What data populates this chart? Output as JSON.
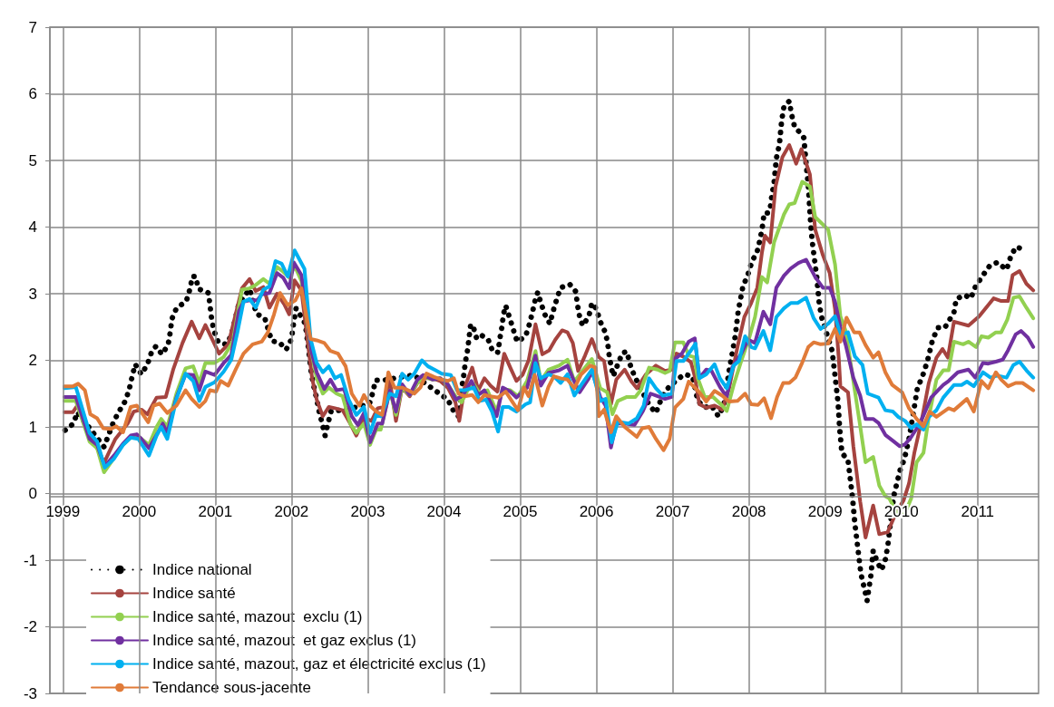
{
  "chart_data": {
    "type": "line",
    "xlim": [
      1998.83,
      2011.8
    ],
    "xticks": [
      1999,
      2000,
      2001,
      2002,
      2003,
      2004,
      2005,
      2006,
      2007,
      2008,
      2009,
      2010,
      2011
    ],
    "ylim": [
      -3,
      7
    ],
    "yticks": [
      -3,
      -2,
      -1,
      0,
      1,
      2,
      3,
      4,
      5,
      6,
      7
    ],
    "grid": true,
    "legend": "bottom left",
    "marker": "none",
    "series": [
      {
        "name": "Indice national",
        "color": "#000000",
        "line_style": "dotted",
        "x": [
          1999.03,
          1999.14,
          1999.19,
          1999.54,
          1999.6,
          1999.66,
          1999.73,
          1999.82,
          1999.87,
          1999.91,
          1999.95,
          2000.03,
          2000.11,
          2000.16,
          2000.22,
          2000.3,
          2000.38,
          2000.41,
          2000.43,
          2000.49,
          2000.62,
          2000.67,
          2000.7,
          2000.74,
          2000.78,
          2000.86,
          2000.91,
          2000.93,
          2000.95,
          2000.98,
          2001.04,
          2001.14,
          2001.21,
          2001.31,
          2001.45,
          2001.54,
          2001.65,
          2001.74,
          2001.84,
          2001.93,
          2002.0,
          2002.02,
          2002.06,
          2002.13,
          2002.18,
          2002.2,
          2002.22,
          2002.26,
          2002.29,
          2002.33,
          2002.36,
          2002.4,
          2002.44,
          2002.48,
          2002.52,
          2002.66,
          2003.02,
          2003.07,
          2003.1,
          2003.2,
          2003.6,
          2004.05,
          2004.13,
          2004.19,
          2004.23,
          2004.26,
          2004.28,
          2004.31,
          2004.33,
          2004.35,
          2004.39,
          2004.43,
          2004.5,
          2004.58,
          2004.64,
          2004.71,
          2004.73,
          2004.76,
          2004.78,
          2004.81,
          2004.86,
          2004.91,
          2004.96,
          2005.07,
          2005.12,
          2005.16,
          2005.2,
          2005.23,
          2005.28,
          2005.33,
          2005.39,
          2005.43,
          2005.48,
          2005.53,
          2005.65,
          2005.73,
          2005.75,
          2005.78,
          2005.82,
          2005.9,
          2005.94,
          2006.0,
          2006.05,
          2006.12,
          2006.15,
          2006.17,
          2006.22,
          2006.28,
          2006.34,
          2006.4,
          2006.44,
          2006.5,
          2006.69,
          2006.78,
          2006.84,
          2006.91,
          2007.03,
          2007.15,
          2007.26,
          2007.33,
          2007.42,
          2007.51,
          2007.6,
          2007.67,
          2007.74,
          2007.78,
          2007.82,
          2007.86,
          2007.92,
          2007.99,
          2008.04,
          2008.11,
          2008.15,
          2008.18,
          2008.2,
          2008.25,
          2008.28,
          2008.3,
          2008.33,
          2008.36,
          2008.4,
          2008.43,
          2008.46,
          2008.53,
          2008.56,
          2008.6,
          2008.66,
          2008.72,
          2008.75,
          2008.78,
          2008.81,
          2008.83,
          2008.86,
          2008.89,
          2008.92,
          2008.95,
          2009.09,
          2009.13,
          2009.17,
          2009.19,
          2009.22,
          2009.3,
          2009.36,
          2009.39,
          2009.43,
          2009.47,
          2009.52,
          2009.55,
          2009.6,
          2009.63,
          2009.69,
          2009.74,
          2009.79,
          2009.82,
          2009.9,
          2009.94,
          2009.98,
          2010.04,
          2010.1,
          2010.16,
          2010.21,
          2010.28,
          2010.34,
          2010.41,
          2010.48,
          2010.57,
          2010.69,
          2010.72,
          2010.83,
          2010.91,
          2010.97,
          2011.06,
          2011.16,
          2011.26,
          2011.38,
          2011.43,
          2011.5,
          2011.6
        ],
        "values": [
          0.95,
          1.05,
          1.22,
          0.7,
          0.88,
          1.06,
          1.22,
          1.39,
          1.56,
          1.76,
          1.94,
          1.79,
          1.94,
          2.11,
          2.21,
          2.09,
          2.23,
          2.43,
          2.62,
          2.78,
          2.89,
          3.08,
          3.26,
          3.26,
          3.07,
          3.04,
          3.01,
          2.83,
          2.64,
          2.45,
          2.27,
          2.24,
          2.37,
          2.85,
          3.07,
          2.7,
          2.63,
          2.29,
          2.27,
          2.16,
          2.32,
          2.5,
          2.78,
          2.65,
          2.55,
          2.37,
          2.2,
          1.8,
          1.62,
          1.42,
          1.24,
          1.06,
          0.87,
          1.06,
          1.24,
          1.25,
          1.34,
          1.53,
          1.7,
          1.7,
          1.78,
          1.41,
          1.23,
          1.16,
          1.57,
          1.78,
          1.97,
          2.16,
          2.35,
          2.54,
          2.48,
          2.32,
          2.37,
          2.31,
          2.13,
          2.12,
          2.31,
          2.5,
          2.69,
          2.82,
          2.64,
          2.46,
          2.28,
          2.36,
          2.54,
          2.72,
          2.92,
          3.02,
          2.83,
          2.67,
          2.55,
          2.73,
          2.92,
          3.09,
          3.14,
          3.03,
          2.84,
          2.65,
          2.52,
          2.66,
          2.86,
          2.77,
          2.58,
          2.41,
          2.23,
          2.04,
          1.76,
          1.94,
          2.11,
          2.13,
          1.94,
          1.76,
          1.33,
          1.21,
          1.39,
          1.55,
          1.68,
          1.79,
          1.76,
          1.39,
          1.29,
          1.32,
          1.16,
          1.32,
          1.84,
          2.1,
          2.36,
          2.74,
          3.1,
          3.3,
          3.48,
          3.64,
          3.83,
          4.03,
          4.21,
          4.21,
          4.29,
          4.47,
          4.66,
          5.03,
          5.24,
          5.6,
          5.81,
          5.89,
          5.69,
          5.5,
          5.43,
          5.34,
          4.96,
          4.61,
          4.06,
          3.79,
          3.52,
          3.25,
          2.88,
          2.66,
          2.15,
          1.77,
          1.36,
          0.98,
          0.61,
          0.5,
          -0.07,
          -0.45,
          -0.83,
          -1.21,
          -1.45,
          -1.61,
          -1.23,
          -0.86,
          -1.04,
          -1.15,
          -0.99,
          -0.8,
          -0.04,
          0.15,
          0.34,
          0.52,
          0.82,
          1.23,
          1.58,
          1.77,
          1.98,
          2.31,
          2.49,
          2.49,
          2.72,
          2.92,
          2.98,
          2.93,
          3.1,
          3.26,
          3.42,
          3.47,
          3.36,
          3.54,
          3.7,
          3.67
        ]
      },
      {
        "name": "Indice santé",
        "color": "#a5433f",
        "line_style": "solid",
        "x": [
          1999.02,
          1999.13,
          1999.19,
          1999.54,
          1999.69,
          1999.85,
          1999.93,
          2000.03,
          2000.11,
          2000.23,
          2000.35,
          2000.45,
          2000.57,
          2000.69,
          2000.79,
          2000.87,
          2001.05,
          2001.17,
          2001.35,
          2001.45,
          2001.53,
          2001.63,
          2001.71,
          2001.81,
          2001.91,
          2001.97,
          2002.04,
          2002.13,
          2002.27,
          2002.33,
          2002.41,
          2002.49,
          2002.57,
          2002.67,
          2002.77,
          2002.85,
          2002.95,
          2003.05,
          2003.13,
          2003.21,
          2003.29,
          2003.37,
          2003.45,
          2003.55,
          2003.65,
          2003.75,
          2003.85,
          2003.95,
          2004.05,
          2004.15,
          2004.2,
          2004.27,
          2004.37,
          2004.45,
          2004.53,
          2004.61,
          2004.7,
          2004.79,
          2004.87,
          2004.95,
          2005.03,
          2005.11,
          2005.2,
          2005.29,
          2005.38,
          2005.46,
          2005.55,
          2005.62,
          2005.69,
          2005.76,
          2005.85,
          2005.94,
          2006.03,
          2006.1,
          2006.19,
          2006.26,
          2006.37,
          2006.46,
          2006.53,
          2006.65,
          2006.78,
          2006.9,
          2006.99,
          2007.05,
          2007.15,
          2007.24,
          2007.29,
          2007.35,
          2007.44,
          2007.55,
          2007.65,
          2007.74,
          2007.85,
          2007.94,
          2008.03,
          2008.11,
          2008.17,
          2008.21,
          2008.28,
          2008.35,
          2008.44,
          2008.53,
          2008.62,
          2008.69,
          2008.8,
          2008.87,
          2008.97,
          2009.06,
          2009.13,
          2009.18,
          2009.2,
          2009.3,
          2009.37,
          2009.46,
          2009.53,
          2009.63,
          2009.71,
          2009.82,
          2009.93,
          2010.03,
          2010.1,
          2010.17,
          2010.27,
          2010.36,
          2010.46,
          2010.54,
          2010.61,
          2010.69,
          2010.88,
          2011.02,
          2011.21,
          2011.31,
          2011.4,
          2011.46,
          2011.55,
          2011.64,
          2011.73
        ],
        "values": [
          1.22,
          1.22,
          1.32,
          0.46,
          0.82,
          1.05,
          1.23,
          1.26,
          1.19,
          1.44,
          1.45,
          1.87,
          2.26,
          2.58,
          2.33,
          2.53,
          2.1,
          2.24,
          3.08,
          3.22,
          3.04,
          3.1,
          2.79,
          3.0,
          2.83,
          2.69,
          3.2,
          3.05,
          1.73,
          1.41,
          1.16,
          1.3,
          1.28,
          1.25,
          1.05,
          0.87,
          1.14,
          1.09,
          1.28,
          1.3,
          1.69,
          1.09,
          1.59,
          1.46,
          1.66,
          1.73,
          1.73,
          1.69,
          1.59,
          1.37,
          1.09,
          1.59,
          1.89,
          1.55,
          1.73,
          1.62,
          1.53,
          2.1,
          1.89,
          1.69,
          1.78,
          2.0,
          2.54,
          2.09,
          2.15,
          2.31,
          2.45,
          2.42,
          2.26,
          1.84,
          2.07,
          2.32,
          2.05,
          1.99,
          1.34,
          1.71,
          1.86,
          1.68,
          1.58,
          1.79,
          1.92,
          1.84,
          1.86,
          2.1,
          2.05,
          1.97,
          1.76,
          1.34,
          1.29,
          1.32,
          1.26,
          1.58,
          2.2,
          2.65,
          2.86,
          3.09,
          3.61,
          3.87,
          3.77,
          4.61,
          5.05,
          5.23,
          4.95,
          5.17,
          4.79,
          3.96,
          3.58,
          3.31,
          2.77,
          2.01,
          1.61,
          1.52,
          0.71,
          -0.12,
          -0.66,
          -0.18,
          -0.61,
          -0.58,
          -0.29,
          -0.1,
          0.15,
          0.61,
          1.12,
          1.66,
          2.04,
          2.17,
          2.04,
          2.58,
          2.52,
          2.66,
          2.93,
          2.89,
          2.89,
          3.28,
          3.34,
          3.15,
          3.05
        ]
      },
      {
        "name": "Indice santé, mazout  exclu (1)",
        "color": "#92d050",
        "line_style": "solid",
        "x": [
          1999.02,
          1999.17,
          1999.35,
          1999.45,
          1999.54,
          1999.65,
          1999.77,
          1999.89,
          2000.01,
          2000.13,
          2000.23,
          2000.29,
          2000.37,
          2000.49,
          2000.61,
          2000.71,
          2000.79,
          2000.87,
          2000.99,
          2001.11,
          2001.23,
          2001.35,
          2001.45,
          2001.53,
          2001.63,
          2001.71,
          2001.81,
          2001.89,
          2001.97,
          2002.04,
          2002.13,
          2002.25,
          2002.33,
          2002.41,
          2002.49,
          2002.59,
          2002.67,
          2002.77,
          2002.85,
          2002.95,
          2003.03,
          2003.11,
          2003.17,
          2003.29,
          2003.37,
          2003.45,
          2003.55,
          2003.65,
          2003.75,
          2003.85,
          2003.95,
          2004.05,
          2004.15,
          2004.23,
          2004.31,
          2004.39,
          2004.47,
          2004.57,
          2004.69,
          2004.77,
          2004.87,
          2004.97,
          2005.09,
          2005.2,
          2005.27,
          2005.37,
          2005.51,
          2005.62,
          2005.71,
          2005.83,
          2005.94,
          2006.05,
          2006.14,
          2006.21,
          2006.28,
          2006.4,
          2006.51,
          2006.58,
          2006.69,
          2006.8,
          2006.9,
          2006.96,
          2007.03,
          2007.14,
          2007.21,
          2007.28,
          2007.33,
          2007.42,
          2007.53,
          2007.65,
          2007.71,
          2007.8,
          2007.9,
          2008.01,
          2008.08,
          2008.17,
          2008.24,
          2008.33,
          2008.46,
          2008.53,
          2008.6,
          2008.7,
          2008.8,
          2008.87,
          2009.04,
          2009.13,
          2009.2,
          2009.27,
          2009.37,
          2009.46,
          2009.53,
          2009.63,
          2009.71,
          2009.79,
          2009.84,
          2009.94,
          2010.03,
          2010.13,
          2010.2,
          2010.29,
          2010.36,
          2010.46,
          2010.55,
          2010.62,
          2010.69,
          2010.81,
          2010.88,
          2010.98,
          2011.05,
          2011.14,
          2011.24,
          2011.31,
          2011.39,
          2011.47,
          2011.55,
          2011.64,
          2011.73
        ],
        "values": [
          1.39,
          1.39,
          0.78,
          0.68,
          0.32,
          0.5,
          0.71,
          0.84,
          0.84,
          0.73,
          1.0,
          1.12,
          1.0,
          1.5,
          1.88,
          1.91,
          1.66,
          1.96,
          1.96,
          2.05,
          2.28,
          3.06,
          3.08,
          3.13,
          3.22,
          3.15,
          3.4,
          3.33,
          3.24,
          3.42,
          3.19,
          2.19,
          1.73,
          1.5,
          1.59,
          1.5,
          1.46,
          1.05,
          0.91,
          1.05,
          0.73,
          0.96,
          0.96,
          1.55,
          1.18,
          1.59,
          1.48,
          1.66,
          1.75,
          1.71,
          1.73,
          1.64,
          1.46,
          1.37,
          1.55,
          1.64,
          1.5,
          1.55,
          1.23,
          1.57,
          1.55,
          1.46,
          1.69,
          2.14,
          1.69,
          1.86,
          1.92,
          2.01,
          1.68,
          1.86,
          2.02,
          1.58,
          1.52,
          1.19,
          1.39,
          1.45,
          1.45,
          1.55,
          1.89,
          1.86,
          1.81,
          1.84,
          2.27,
          2.27,
          2.07,
          2.05,
          1.73,
          1.45,
          1.45,
          1.32,
          1.24,
          1.63,
          1.99,
          2.36,
          2.65,
          3.25,
          3.17,
          3.77,
          4.19,
          4.34,
          4.36,
          4.68,
          4.61,
          4.15,
          3.96,
          3.44,
          2.66,
          2.44,
          1.69,
          1.01,
          0.47,
          0.55,
          0.12,
          -0.04,
          -0.07,
          -0.29,
          -0.34,
          -0.07,
          0.47,
          0.61,
          1.15,
          1.71,
          1.85,
          1.85,
          2.28,
          2.24,
          2.28,
          2.2,
          2.36,
          2.34,
          2.42,
          2.42,
          2.61,
          2.94,
          2.96,
          2.79,
          2.63
        ]
      },
      {
        "name": "Indice santé, mazout  et gaz exclus (1)",
        "color": "#7030a0",
        "line_style": "solid",
        "x": [
          1999.02,
          1999.17,
          1999.35,
          1999.45,
          1999.55,
          1999.67,
          1999.79,
          1999.89,
          1999.97,
          2000.03,
          2000.13,
          2000.25,
          2000.31,
          2000.37,
          2000.49,
          2000.61,
          2000.71,
          2000.79,
          2000.87,
          2000.99,
          2001.11,
          2001.21,
          2001.31,
          2001.37,
          2001.45,
          2001.55,
          2001.61,
          2001.71,
          2001.81,
          2001.89,
          2001.97,
          2002.03,
          2002.13,
          2002.26,
          2002.33,
          2002.43,
          2002.51,
          2002.59,
          2002.69,
          2002.79,
          2002.87,
          2002.95,
          2003.03,
          2003.13,
          2003.19,
          2003.29,
          2003.37,
          2003.45,
          2003.55,
          2003.65,
          2003.73,
          2003.85,
          2003.95,
          2004.05,
          2004.16,
          2004.25,
          2004.36,
          2004.45,
          2004.53,
          2004.61,
          2004.69,
          2004.77,
          2004.87,
          2004.95,
          2005.09,
          2005.2,
          2005.27,
          2005.37,
          2005.51,
          2005.62,
          2005.69,
          2005.78,
          2005.9,
          2005.94,
          2006.05,
          2006.12,
          2006.19,
          2006.26,
          2006.37,
          2006.5,
          2006.61,
          2006.71,
          2006.78,
          2006.9,
          2006.99,
          2007.03,
          2007.12,
          2007.21,
          2007.29,
          2007.35,
          2007.44,
          2007.51,
          2007.62,
          2007.71,
          2007.78,
          2007.9,
          2007.99,
          2008.08,
          2008.19,
          2008.28,
          2008.36,
          2008.46,
          2008.55,
          2008.65,
          2008.75,
          2008.87,
          2008.97,
          2009.06,
          2009.13,
          2009.2,
          2009.27,
          2009.37,
          2009.46,
          2009.53,
          2009.63,
          2009.7,
          2009.79,
          2009.89,
          2009.98,
          2010.05,
          2010.13,
          2010.22,
          2010.29,
          2010.39,
          2010.48,
          2010.55,
          2010.62,
          2010.74,
          2010.88,
          2010.97,
          2011.07,
          2011.14,
          2011.24,
          2011.33,
          2011.4,
          2011.5,
          2011.57,
          2011.66,
          2011.73
        ],
        "values": [
          1.45,
          1.45,
          0.82,
          0.73,
          0.41,
          0.57,
          0.75,
          0.87,
          0.89,
          0.82,
          0.68,
          0.92,
          1.05,
          0.91,
          1.44,
          1.79,
          1.78,
          1.55,
          1.83,
          1.78,
          1.96,
          2.08,
          2.74,
          2.88,
          2.9,
          2.9,
          2.99,
          3.01,
          3.31,
          3.24,
          3.08,
          3.47,
          3.28,
          2.14,
          1.82,
          1.57,
          1.71,
          1.55,
          1.57,
          1.16,
          1.03,
          1.21,
          0.77,
          1.05,
          1.05,
          1.55,
          1.23,
          1.64,
          1.48,
          1.71,
          1.78,
          1.71,
          1.73,
          1.64,
          1.41,
          1.48,
          1.69,
          1.48,
          1.55,
          1.37,
          1.16,
          1.59,
          1.53,
          1.44,
          1.59,
          2.07,
          1.62,
          1.81,
          1.85,
          1.92,
          1.73,
          1.52,
          1.73,
          1.84,
          1.45,
          1.32,
          0.69,
          1.05,
          1.05,
          1.03,
          1.24,
          1.5,
          1.47,
          1.42,
          1.45,
          2.02,
          2.1,
          2.28,
          2.33,
          1.73,
          1.86,
          1.84,
          1.6,
          1.45,
          1.89,
          2.1,
          2.31,
          2.26,
          2.73,
          2.54,
          3.09,
          3.27,
          3.38,
          3.46,
          3.51,
          3.25,
          3.09,
          3.09,
          2.88,
          2.5,
          2.23,
          1.74,
          1.47,
          1.12,
          1.12,
          1.06,
          0.88,
          0.79,
          0.71,
          0.74,
          0.85,
          1.01,
          1.17,
          1.44,
          1.55,
          1.63,
          1.69,
          1.82,
          1.86,
          1.74,
          1.96,
          1.95,
          1.98,
          2.01,
          2.15,
          2.39,
          2.44,
          2.34,
          2.2
        ]
      },
      {
        "name": "Indice santé, mazout, gaz et électricité exclus (1)",
        "color": "#00b0f0",
        "line_style": "solid",
        "x": [
          1999.02,
          1999.17,
          1999.35,
          1999.45,
          1999.55,
          1999.67,
          1999.79,
          1999.89,
          1999.99,
          2000.13,
          2000.23,
          2000.29,
          2000.37,
          2000.49,
          2000.61,
          2000.71,
          2000.79,
          2000.87,
          2000.99,
          2001.11,
          2001.21,
          2001.29,
          2001.37,
          2001.45,
          2001.53,
          2001.63,
          2001.71,
          2001.79,
          2001.87,
          2001.95,
          2002.04,
          2002.17,
          2002.25,
          2002.33,
          2002.41,
          2002.49,
          2002.57,
          2002.65,
          2002.75,
          2002.85,
          2002.95,
          2003.03,
          2003.11,
          2003.17,
          2003.29,
          2003.37,
          2003.45,
          2003.53,
          2003.61,
          2003.71,
          2003.79,
          2003.89,
          2003.97,
          2004.09,
          2004.17,
          2004.27,
          2004.39,
          2004.47,
          2004.55,
          2004.63,
          2004.71,
          2004.77,
          2004.85,
          2004.95,
          2005.07,
          2005.13,
          2005.2,
          2005.27,
          2005.37,
          2005.44,
          2005.53,
          2005.62,
          2005.71,
          2005.8,
          2005.94,
          2006.05,
          2006.12,
          2006.2,
          2006.28,
          2006.42,
          2006.53,
          2006.62,
          2006.69,
          2006.78,
          2006.87,
          2006.99,
          2007.05,
          2007.14,
          2007.24,
          2007.3,
          2007.35,
          2007.44,
          2007.55,
          2007.62,
          2007.71,
          2007.8,
          2007.87,
          2007.95,
          2008.03,
          2008.08,
          2008.19,
          2008.28,
          2008.36,
          2008.46,
          2008.55,
          2008.64,
          2008.75,
          2008.85,
          2008.94,
          2009.04,
          2009.13,
          2009.2,
          2009.3,
          2009.39,
          2009.49,
          2009.56,
          2009.7,
          2009.79,
          2009.89,
          2009.96,
          2010.05,
          2010.13,
          2010.2,
          2010.29,
          2010.36,
          2010.46,
          2010.55,
          2010.69,
          2010.79,
          2010.86,
          2010.95,
          2011.07,
          2011.17,
          2011.26,
          2011.38,
          2011.47,
          2011.55,
          2011.64,
          2011.73
        ],
        "values": [
          1.58,
          1.6,
          0.91,
          0.78,
          0.39,
          0.52,
          0.73,
          0.84,
          0.82,
          0.57,
          0.87,
          1.0,
          0.82,
          1.42,
          1.8,
          1.69,
          1.39,
          1.6,
          1.67,
          1.83,
          2.01,
          2.42,
          2.88,
          2.92,
          2.79,
          3.06,
          3.11,
          3.49,
          3.45,
          3.26,
          3.65,
          3.37,
          2.32,
          1.96,
          1.82,
          1.91,
          1.73,
          1.78,
          1.41,
          1.18,
          1.3,
          0.91,
          1.18,
          1.16,
          1.5,
          1.46,
          1.8,
          1.71,
          1.8,
          2.0,
          1.91,
          1.85,
          1.8,
          1.78,
          1.55,
          1.55,
          1.59,
          1.39,
          1.41,
          1.23,
          0.93,
          1.3,
          1.3,
          1.23,
          1.34,
          1.37,
          1.96,
          1.73,
          1.79,
          1.76,
          1.66,
          1.79,
          1.47,
          1.63,
          1.86,
          1.39,
          1.42,
          0.77,
          1.08,
          1.05,
          1.13,
          1.32,
          1.73,
          1.58,
          1.47,
          1.5,
          1.99,
          1.99,
          2.15,
          2.25,
          1.73,
          1.79,
          1.94,
          1.73,
          1.58,
          1.92,
          1.99,
          2.36,
          2.2,
          2.18,
          2.44,
          2.15,
          2.65,
          2.78,
          2.86,
          2.86,
          2.94,
          2.63,
          2.47,
          2.55,
          2.66,
          2.39,
          2.42,
          2.06,
          1.93,
          1.5,
          1.44,
          1.25,
          1.23,
          1.15,
          1.09,
          0.98,
          1.04,
          0.96,
          1.15,
          1.25,
          1.44,
          1.63,
          1.63,
          1.68,
          1.61,
          1.82,
          1.74,
          1.77,
          1.74,
          1.93,
          1.98,
          1.85,
          1.74
        ]
      },
      {
        "name": "Tendance sous-jacente",
        "color": "#e07b39",
        "line_style": "solid",
        "x": [
          1999.02,
          1999.13,
          1999.2,
          1999.29,
          1999.36,
          1999.45,
          1999.53,
          1999.63,
          1999.7,
          1999.79,
          1999.89,
          1999.97,
          2000.12,
          2000.19,
          2000.27,
          2000.37,
          2000.49,
          2000.61,
          2000.69,
          2000.79,
          2000.87,
          2000.93,
          2001.01,
          2001.07,
          2001.17,
          2001.27,
          2001.37,
          2001.49,
          2001.61,
          2001.69,
          2001.77,
          2001.85,
          2001.95,
          2002.05,
          2002.13,
          2002.25,
          2002.33,
          2002.43,
          2002.51,
          2002.61,
          2002.71,
          2002.79,
          2002.89,
          2002.95,
          2003.03,
          2003.11,
          2003.19,
          2003.27,
          2003.35,
          2003.45,
          2003.53,
          2003.61,
          2003.69,
          2003.77,
          2003.87,
          2003.97,
          2004.05,
          2004.13,
          2004.19,
          2004.27,
          2004.37,
          2004.45,
          2004.53,
          2004.61,
          2004.71,
          2004.81,
          2004.89,
          2004.97,
          2005.05,
          2005.11,
          2005.19,
          2005.29,
          2005.37,
          2005.44,
          2005.53,
          2005.62,
          2005.71,
          2005.8,
          2005.92,
          2005.99,
          2006.03,
          2006.1,
          2006.19,
          2006.26,
          2006.37,
          2006.53,
          2006.6,
          2006.69,
          2006.78,
          2006.88,
          2006.96,
          2007.03,
          2007.14,
          2007.21,
          2007.28,
          2007.35,
          2007.44,
          2007.55,
          2007.65,
          2007.74,
          2007.85,
          2007.95,
          2008.03,
          2008.12,
          2008.2,
          2008.29,
          2008.37,
          2008.45,
          2008.53,
          2008.61,
          2008.69,
          2008.78,
          2008.85,
          2008.94,
          2009.04,
          2009.13,
          2009.2,
          2009.28,
          2009.38,
          2009.45,
          2009.53,
          2009.63,
          2009.7,
          2009.79,
          2009.88,
          2010.01,
          2010.1,
          2010.2,
          2010.29,
          2010.37,
          2010.46,
          2010.62,
          2010.69,
          2010.86,
          2010.95,
          2011.05,
          2011.14,
          2011.24,
          2011.31,
          2011.4,
          2011.5,
          2011.59,
          2011.73
        ],
        "values": [
          1.61,
          1.61,
          1.65,
          1.55,
          1.19,
          1.13,
          0.98,
          0.97,
          1.01,
          0.92,
          1.3,
          1.32,
          1.07,
          1.32,
          1.35,
          1.21,
          1.32,
          1.55,
          1.42,
          1.3,
          1.39,
          1.55,
          1.53,
          1.69,
          1.62,
          1.87,
          2.1,
          2.24,
          2.28,
          2.42,
          2.69,
          3.01,
          2.83,
          2.9,
          3.08,
          2.32,
          2.3,
          2.26,
          2.14,
          2.1,
          1.91,
          1.5,
          1.32,
          1.48,
          1.32,
          1.23,
          1.18,
          1.82,
          1.59,
          1.59,
          1.55,
          1.5,
          1.59,
          1.8,
          1.75,
          1.71,
          1.69,
          1.73,
          1.5,
          1.46,
          1.48,
          1.37,
          1.48,
          1.46,
          1.44,
          1.53,
          1.39,
          1.25,
          1.59,
          1.46,
          1.78,
          1.32,
          1.6,
          1.76,
          1.73,
          1.71,
          1.58,
          1.79,
          1.92,
          1.89,
          1.16,
          1.26,
          0.92,
          1.16,
          1.0,
          0.85,
          0.98,
          1.0,
          0.82,
          0.65,
          0.82,
          1.29,
          1.42,
          1.68,
          1.6,
          1.52,
          1.38,
          1.54,
          1.47,
          1.38,
          1.39,
          1.5,
          1.34,
          1.33,
          1.43,
          1.13,
          1.45,
          1.66,
          1.66,
          1.74,
          1.94,
          2.2,
          2.27,
          2.24,
          2.25,
          2.47,
          2.28,
          2.64,
          2.42,
          2.42,
          2.23,
          2.04,
          2.12,
          1.82,
          1.63,
          1.52,
          1.28,
          1.12,
          1.01,
          1.23,
          1.15,
          1.28,
          1.25,
          1.42,
          1.23,
          1.69,
          1.58,
          1.82,
          1.71,
          1.61,
          1.66,
          1.66,
          1.55
        ]
      }
    ]
  }
}
